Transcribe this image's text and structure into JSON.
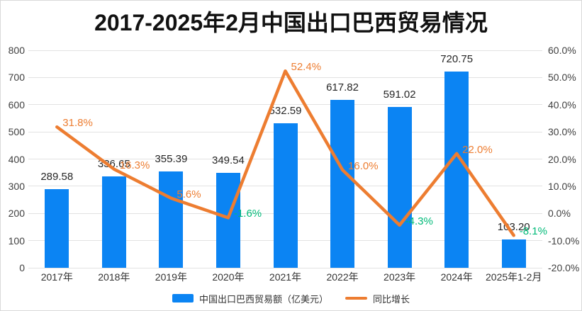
{
  "title": "2017-2025年2月中国出口巴西贸易情况",
  "colors": {
    "bar": "#0b84f3",
    "line": "#ed7d31",
    "negative_label": "#00ba78",
    "grid": "#e2e2e2",
    "axis_text": "#404040",
    "value_label": "#262626",
    "border": "#d9d9d9"
  },
  "chart_data": {
    "type": "combo-bar-line",
    "title": "2017-2025年2月中国出口巴西贸易情况",
    "categories": [
      "2017年",
      "2018年",
      "2019年",
      "2020年",
      "2021年",
      "2022年",
      "2023年",
      "2024年",
      "2025年1-2月"
    ],
    "series": [
      {
        "name": "中国出口巴西贸易额（亿美元）",
        "type": "bar",
        "axis": "left",
        "color": "#0b84f3",
        "values": [
          289.58,
          336.65,
          355.39,
          349.54,
          532.59,
          617.82,
          591.02,
          720.75,
          103.2
        ],
        "labels": [
          "289.58",
          "336.65",
          "355.39",
          "349.54",
          "532.59",
          "617.82",
          "591.02",
          "720.75",
          "103.20"
        ]
      },
      {
        "name": "同比增长",
        "type": "line",
        "axis": "right",
        "color": "#ed7d31",
        "values": [
          31.8,
          16.3,
          5.6,
          -1.6,
          52.4,
          16.0,
          -4.3,
          22.0,
          -8.1
        ],
        "labels": [
          "31.8%",
          "16.3%",
          "5.6%",
          "-1.6%",
          "52.4%",
          "16.0%",
          "-4.3%",
          "22.0%",
          "-8.1%"
        ]
      }
    ],
    "left_axis": {
      "min": 0,
      "max": 800,
      "step": 100,
      "tick_labels": [
        "800",
        "700",
        "600",
        "500",
        "400",
        "300",
        "200",
        "100",
        "0"
      ]
    },
    "right_axis": {
      "min": -20,
      "max": 60,
      "step": 10,
      "tick_labels": [
        "60.0%",
        "50.0%",
        "40.0%",
        "30.0%",
        "20.0%",
        "10.0%",
        "0.0%",
        "-10.0%",
        "-20.0%"
      ]
    },
    "grid": true,
    "legend_position": "bottom"
  },
  "legend": {
    "bar_label": "中国出口巴西贸易额（亿美元）",
    "line_label": "同比增长"
  }
}
